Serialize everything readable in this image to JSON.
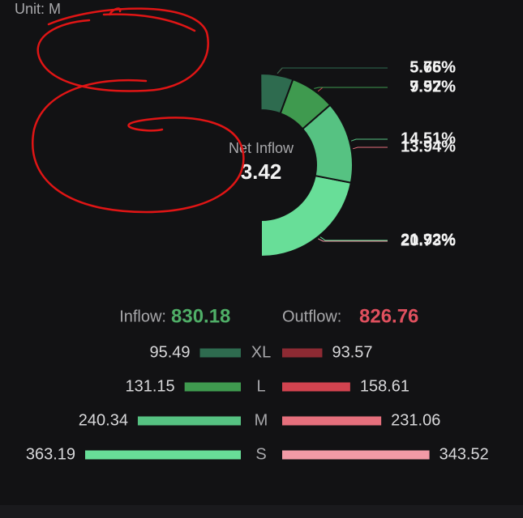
{
  "chart_data": [
    {
      "type": "donut",
      "unit": "Unit: M",
      "center_label": "Net Inflow",
      "center_value": 3.42,
      "series": [
        {
          "colors": [
            "#8d2a33",
            "#d2434f",
            "#e56f7c",
            "#f29aa6"
          ],
          "values": [
            5.65,
            9.57,
            13.94,
            20.73
          ],
          "value_labels": [
            "5.65%",
            "9.57%",
            "13.94%",
            "20.73%"
          ],
          "direction": "clockwise"
        },
        {
          "colors": [
            "#68de98",
            "#56c282",
            "#3f9a4f",
            "#2e6b4f"
          ],
          "values": [
            21.92,
            14.51,
            7.92,
            5.76
          ],
          "value_labels": [
            "21.92%",
            "14.51%",
            "7.92%",
            "5.76%"
          ],
          "direction": "counterclockwise",
          "from": "bottom"
        }
      ]
    },
    {
      "type": "bar",
      "categories": [
        "XL",
        "L",
        "M",
        "S"
      ],
      "series": [
        {
          "name": "Inflow:",
          "total": 830.18,
          "total_color": "#4fae67",
          "colors": [
            "#2e6b4f",
            "#3f9a4f",
            "#56c282",
            "#68de98"
          ],
          "values": [
            95.49,
            131.15,
            240.34,
            363.19
          ]
        },
        {
          "name": "Outflow:",
          "total": 826.76,
          "total_color": "#e0505e",
          "colors": [
            "#8d2a33",
            "#d2434f",
            "#e56f7c",
            "#f29aa6"
          ],
          "values": [
            93.57,
            158.61,
            231.06,
            343.52
          ]
        }
      ]
    }
  ]
}
